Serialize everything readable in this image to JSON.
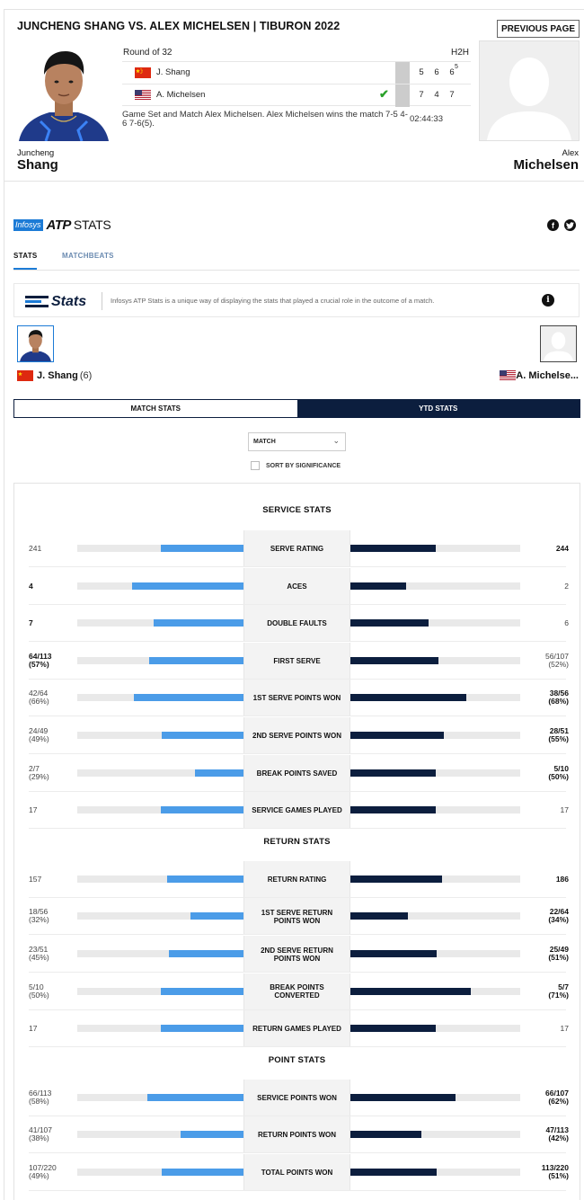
{
  "header": {
    "match_title": "JUNCHENG SHANG VS. ALEX MICHELSEN | TIBURON 2022",
    "previous_page_label": "PREVIOUS PAGE"
  },
  "players": {
    "left": {
      "first": "Juncheng",
      "last": "Shang",
      "short": "J. Shang",
      "seed": "(6)",
      "flag": "china"
    },
    "right": {
      "first": "Alex",
      "last": "Michelsen",
      "short": "A. Michelsen",
      "short_truncated": "A. Michelse...",
      "flag": "usa"
    }
  },
  "scoreboard": {
    "round": "Round of 32",
    "h2h_label": "H2H",
    "rows": [
      {
        "name": "J. Shang",
        "sets": [
          "5",
          "6",
          "6"
        ],
        "tiebreak": "5",
        "winner": false
      },
      {
        "name": "A. Michelsen",
        "sets": [
          "7",
          "4",
          "7"
        ],
        "tiebreak": "",
        "winner": true
      }
    ],
    "result": "Game Set and Match Alex Michelsen. Alex Michelsen wins the match 7-5 4-6 7-6(5).",
    "duration": "02:44:33"
  },
  "brand": {
    "infosys": "Infosys",
    "atp": "ATP",
    "stats": "STATS"
  },
  "tabs": {
    "stats": "STATS",
    "matchbeats": "MATCHBEATS"
  },
  "banner": {
    "logo_text": "Stats",
    "description": "Infosys ATP Stats is a unique way of displaying the stats that played a crucial role in the outcome of a match."
  },
  "toggle": {
    "match_stats": "MATCH STATS",
    "ytd_stats": "YTD STATS",
    "active": "YTD STATS"
  },
  "filter": {
    "select_value": "MATCH",
    "sort_label": "SORT BY SIGNIFICANCE",
    "sort_checked": false
  },
  "colors": {
    "left_bar": "#4b9ce8",
    "right_bar": "#0c1e3e",
    "track": "#e9e9e9",
    "winner_check": "#2aa12a"
  },
  "sections": [
    {
      "title": "SERVICE STATS",
      "rows": [
        {
          "label": "SERVE RATING",
          "left": "241",
          "left_pct": "",
          "right": "244",
          "right_pct": "",
          "left_win": false,
          "right_win": true,
          "left_bar": 0.5,
          "right_bar": 0.5
        },
        {
          "label": "ACES",
          "left": "4",
          "left_pct": "",
          "right": "2",
          "right_pct": "",
          "left_win": true,
          "right_win": false,
          "left_bar": 0.67,
          "right_bar": 0.33
        },
        {
          "label": "DOUBLE FAULTS",
          "left": "7",
          "left_pct": "",
          "right": "6",
          "right_pct": "",
          "left_win": true,
          "right_win": false,
          "left_bar": 0.54,
          "right_bar": 0.46
        },
        {
          "label": "FIRST SERVE",
          "left": "64/113",
          "left_pct": "(57%)",
          "right": "56/107",
          "right_pct": "(52%)",
          "left_win": true,
          "right_win": false,
          "left_bar": 0.57,
          "right_bar": 0.52
        },
        {
          "label": "1ST SERVE POINTS WON",
          "left": "42/64",
          "left_pct": "(66%)",
          "right": "38/56",
          "right_pct": "(68%)",
          "left_win": false,
          "right_win": true,
          "left_bar": 0.66,
          "right_bar": 0.68
        },
        {
          "label": "2ND SERVE POINTS WON",
          "left": "24/49",
          "left_pct": "(49%)",
          "right": "28/51",
          "right_pct": "(55%)",
          "left_win": false,
          "right_win": true,
          "left_bar": 0.49,
          "right_bar": 0.55
        },
        {
          "label": "BREAK POINTS SAVED",
          "left": "2/7",
          "left_pct": "(29%)",
          "right": "5/10",
          "right_pct": "(50%)",
          "left_win": false,
          "right_win": true,
          "left_bar": 0.29,
          "right_bar": 0.5
        },
        {
          "label": "SERVICE GAMES PLAYED",
          "left": "17",
          "left_pct": "",
          "right": "17",
          "right_pct": "",
          "left_win": false,
          "right_win": false,
          "left_bar": 0.5,
          "right_bar": 0.5
        }
      ]
    },
    {
      "title": "RETURN STATS",
      "rows": [
        {
          "label": "RETURN RATING",
          "left": "157",
          "left_pct": "",
          "right": "186",
          "right_pct": "",
          "left_win": false,
          "right_win": true,
          "left_bar": 0.46,
          "right_bar": 0.54
        },
        {
          "label": "1ST SERVE RETURN POINTS WON",
          "left": "18/56",
          "left_pct": "(32%)",
          "right": "22/64",
          "right_pct": "(34%)",
          "left_win": false,
          "right_win": true,
          "left_bar": 0.32,
          "right_bar": 0.34
        },
        {
          "label": "2ND SERVE RETURN POINTS WON",
          "left": "23/51",
          "left_pct": "(45%)",
          "right": "25/49",
          "right_pct": "(51%)",
          "left_win": false,
          "right_win": true,
          "left_bar": 0.45,
          "right_bar": 0.51
        },
        {
          "label": "BREAK POINTS CONVERTED",
          "left": "5/10",
          "left_pct": "(50%)",
          "right": "5/7",
          "right_pct": "(71%)",
          "left_win": false,
          "right_win": true,
          "left_bar": 0.5,
          "right_bar": 0.71
        },
        {
          "label": "RETURN GAMES PLAYED",
          "left": "17",
          "left_pct": "",
          "right": "17",
          "right_pct": "",
          "left_win": false,
          "right_win": false,
          "left_bar": 0.5,
          "right_bar": 0.5
        }
      ]
    },
    {
      "title": "POINT STATS",
      "rows": [
        {
          "label": "SERVICE POINTS WON",
          "left": "66/113",
          "left_pct": "(58%)",
          "right": "66/107",
          "right_pct": "(62%)",
          "left_win": false,
          "right_win": true,
          "left_bar": 0.58,
          "right_bar": 0.62
        },
        {
          "label": "RETURN POINTS WON",
          "left": "41/107",
          "left_pct": "(38%)",
          "right": "47/113",
          "right_pct": "(42%)",
          "left_win": false,
          "right_win": true,
          "left_bar": 0.38,
          "right_bar": 0.42
        },
        {
          "label": "TOTAL POINTS WON",
          "left": "107/220",
          "left_pct": "(49%)",
          "right": "113/220",
          "right_pct": "(51%)",
          "left_win": false,
          "right_win": true,
          "left_bar": 0.49,
          "right_bar": 0.51
        }
      ]
    }
  ]
}
